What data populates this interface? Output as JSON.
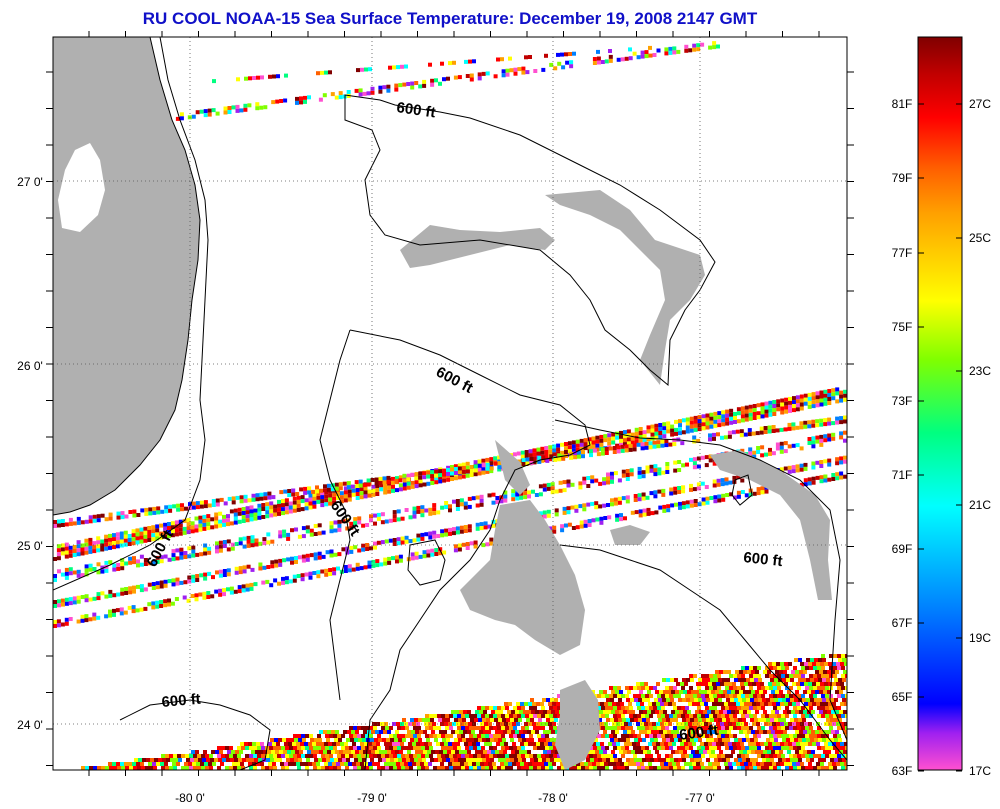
{
  "title": "RU COOL  NOAA-15  Sea Surface Temperature:  December 19, 2008 2147 GMT",
  "map": {
    "lon_labels": [
      "-80 0'",
      "-79 0'",
      "-78 0'",
      "-77 0'"
    ],
    "lat_labels": [
      "27 0'",
      "26 0'",
      "25 0'",
      "24 0'"
    ],
    "contour_label": "600 ft",
    "contour_labels": [
      "600 ft",
      "600 ft",
      "600 ft",
      "600 ft",
      "600 ft",
      "600 ft",
      "600 ft"
    ]
  },
  "colorbar": {
    "fahrenheit_labels": [
      "81F",
      "79F",
      "77F",
      "75F",
      "73F",
      "71F",
      "69F",
      "67F",
      "65F",
      "63F"
    ],
    "celsius_labels": [
      "27C",
      "25C",
      "23C",
      "21C",
      "19C",
      "17C"
    ],
    "colors": [
      "#ff50d0",
      "#a020f0",
      "#0000ff",
      "#0080ff",
      "#00ffff",
      "#00ff80",
      "#80ff00",
      "#ffff00",
      "#ffa000",
      "#ff6000",
      "#ff0000",
      "#c00000",
      "#800000"
    ]
  }
}
